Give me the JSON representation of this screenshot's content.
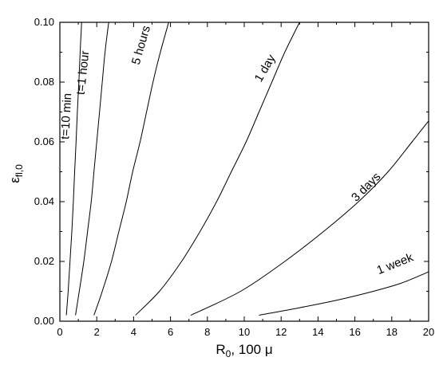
{
  "chart_data": {
    "type": "line",
    "title": "",
    "xlabel": "R",
    "xlabel_sub": "0",
    "xlabel_suffix": ", 100 μ",
    "ylabel": "ε",
    "ylabel_sub": "fl,0",
    "xlim": [
      0,
      20
    ],
    "ylim": [
      0,
      0.1
    ],
    "x_ticks": [
      0,
      2,
      4,
      6,
      8,
      10,
      12,
      14,
      16,
      18,
      20
    ],
    "y_ticks": [
      0.0,
      0.02,
      0.04,
      0.06,
      0.08,
      0.1
    ],
    "x_tick_labels": [
      "0",
      "2",
      "4",
      "6",
      "8",
      "10",
      "12",
      "14",
      "16",
      "18",
      "20"
    ],
    "y_tick_labels": [
      "0.00",
      "0.02",
      "0.04",
      "0.06",
      "0.08",
      "0.10"
    ],
    "grid": false,
    "series": [
      {
        "name": "t=10 min",
        "label_x": 0.55,
        "label_y": 0.0685,
        "label_angle": -87,
        "points": [
          [
            0.35,
            0.002
          ],
          [
            0.45,
            0.01
          ],
          [
            0.55,
            0.02
          ],
          [
            0.65,
            0.03
          ],
          [
            0.73,
            0.04
          ],
          [
            0.8,
            0.05
          ],
          [
            0.88,
            0.06
          ],
          [
            0.95,
            0.07
          ],
          [
            1.03,
            0.08
          ],
          [
            1.1,
            0.09
          ],
          [
            1.18,
            0.1
          ]
        ]
      },
      {
        "name": "t=1 hour",
        "label_x": 1.45,
        "label_y": 0.083,
        "label_angle": -84,
        "points": [
          [
            0.85,
            0.002
          ],
          [
            1.05,
            0.01
          ],
          [
            1.3,
            0.02
          ],
          [
            1.5,
            0.03
          ],
          [
            1.7,
            0.04
          ],
          [
            1.85,
            0.05
          ],
          [
            2.0,
            0.06
          ],
          [
            2.15,
            0.07
          ],
          [
            2.3,
            0.08
          ],
          [
            2.45,
            0.09
          ],
          [
            2.65,
            0.1
          ]
        ]
      },
      {
        "name": "5 hours",
        "label_x": 4.6,
        "label_y": 0.092,
        "label_angle": -74,
        "points": [
          [
            1.85,
            0.002
          ],
          [
            2.3,
            0.01
          ],
          [
            2.8,
            0.02
          ],
          [
            3.2,
            0.03
          ],
          [
            3.6,
            0.04
          ],
          [
            3.95,
            0.05
          ],
          [
            4.35,
            0.06
          ],
          [
            4.7,
            0.07
          ],
          [
            5.05,
            0.08
          ],
          [
            5.45,
            0.09
          ],
          [
            5.9,
            0.1
          ]
        ]
      },
      {
        "name": "1 day",
        "label_x": 11.3,
        "label_y": 0.084,
        "label_angle": -60,
        "points": [
          [
            4.1,
            0.002
          ],
          [
            5.4,
            0.01
          ],
          [
            6.6,
            0.02
          ],
          [
            7.6,
            0.03
          ],
          [
            8.5,
            0.04
          ],
          [
            9.3,
            0.05
          ],
          [
            10.1,
            0.06
          ],
          [
            10.8,
            0.07
          ],
          [
            11.5,
            0.08
          ],
          [
            12.2,
            0.09
          ],
          [
            13.0,
            0.1
          ]
        ]
      },
      {
        "name": "3 days",
        "label_x": 16.75,
        "label_y": 0.044,
        "label_angle": -45,
        "points": [
          [
            7.1,
            0.002
          ],
          [
            9.8,
            0.01
          ],
          [
            12.2,
            0.02
          ],
          [
            14.3,
            0.03
          ],
          [
            16.2,
            0.04
          ],
          [
            17.8,
            0.05
          ],
          [
            19.1,
            0.06
          ],
          [
            20.0,
            0.067
          ]
        ]
      },
      {
        "name": "1 week",
        "label_x": 18.25,
        "label_y": 0.018,
        "label_angle": -22,
        "points": [
          [
            10.8,
            0.002
          ],
          [
            13.0,
            0.0045
          ],
          [
            15.0,
            0.007
          ],
          [
            17.0,
            0.01
          ],
          [
            18.5,
            0.0127
          ],
          [
            20.0,
            0.0165
          ]
        ]
      }
    ]
  }
}
